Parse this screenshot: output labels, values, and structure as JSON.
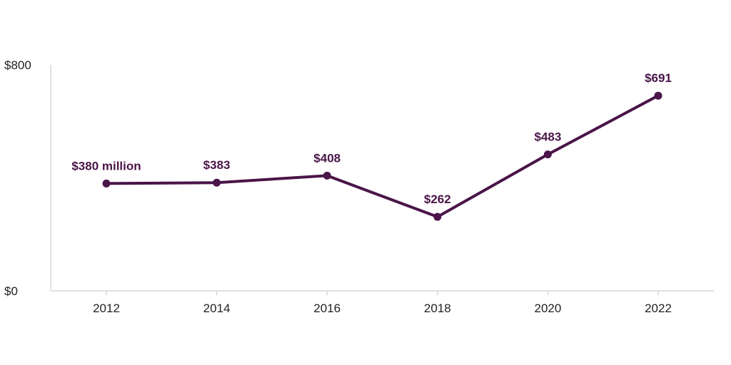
{
  "colors": {
    "series": "#4a1548",
    "axis": "#cfcfcf",
    "text": "#222222"
  },
  "chart_data": {
    "type": "line",
    "title": "",
    "xlabel": "",
    "ylabel": "",
    "x": [
      "2012",
      "2014",
      "2016",
      "2018",
      "2020",
      "2022"
    ],
    "ylim": [
      0,
      800
    ],
    "yticks": [
      "$0",
      "$800"
    ],
    "grid": false,
    "series": [
      {
        "values": [
          380,
          383,
          408,
          262,
          483,
          691
        ],
        "labels": [
          "$380 million",
          "$383",
          "$408",
          "$262",
          "$483",
          "$691"
        ]
      }
    ]
  }
}
